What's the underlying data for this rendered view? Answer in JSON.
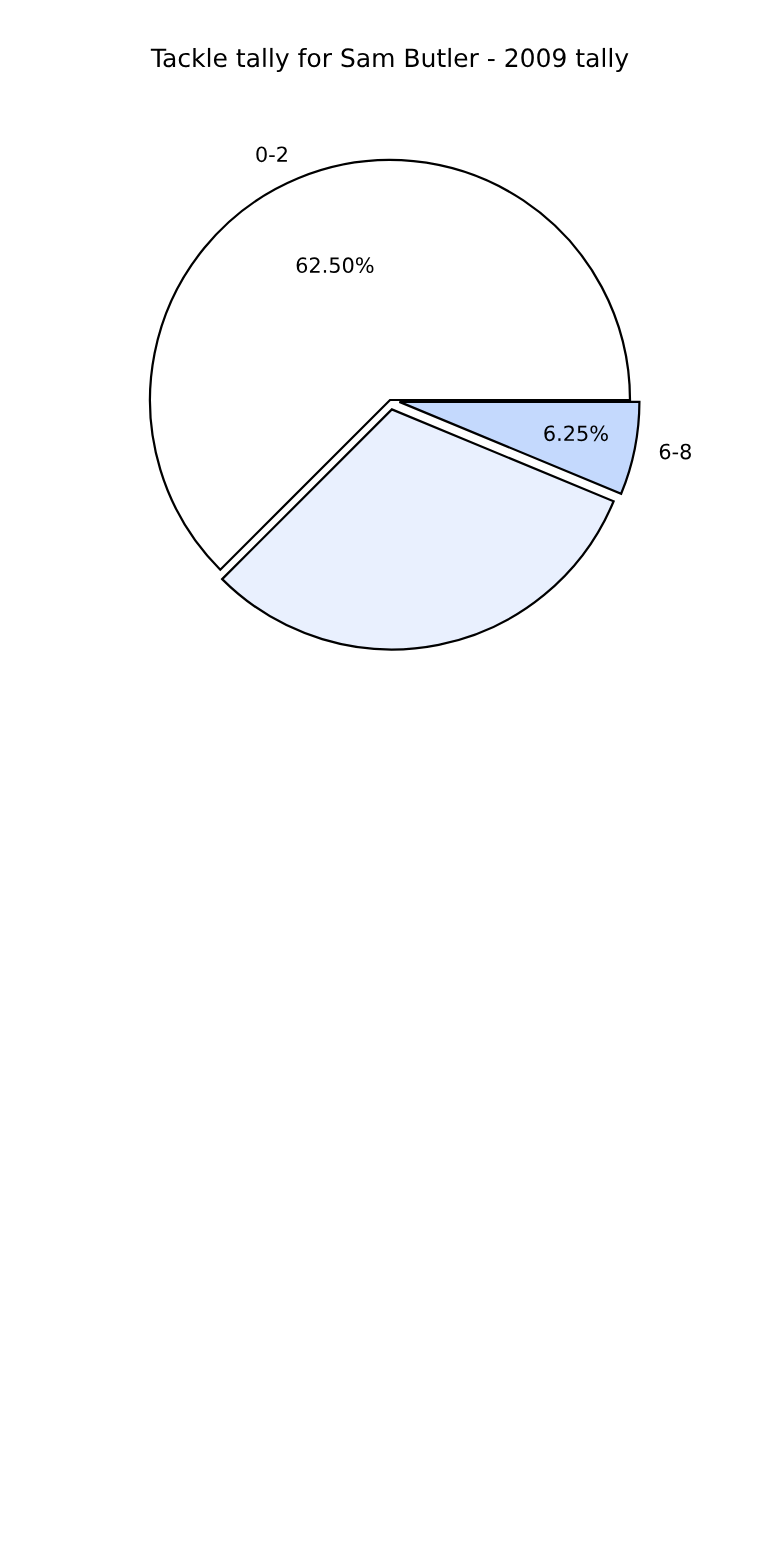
{
  "chart_data": {
    "type": "pie",
    "title": "Tackle tally for Sam Butler - 2009 tally",
    "categories": [
      "0-2",
      null,
      "6-8"
    ],
    "values": [
      62.5,
      31.25,
      6.25
    ],
    "colors": [
      "#ffffff",
      "#e9f0fe",
      "#c4d9fd"
    ],
    "value_labels": [
      "62.50%",
      null,
      "6.25%"
    ]
  }
}
